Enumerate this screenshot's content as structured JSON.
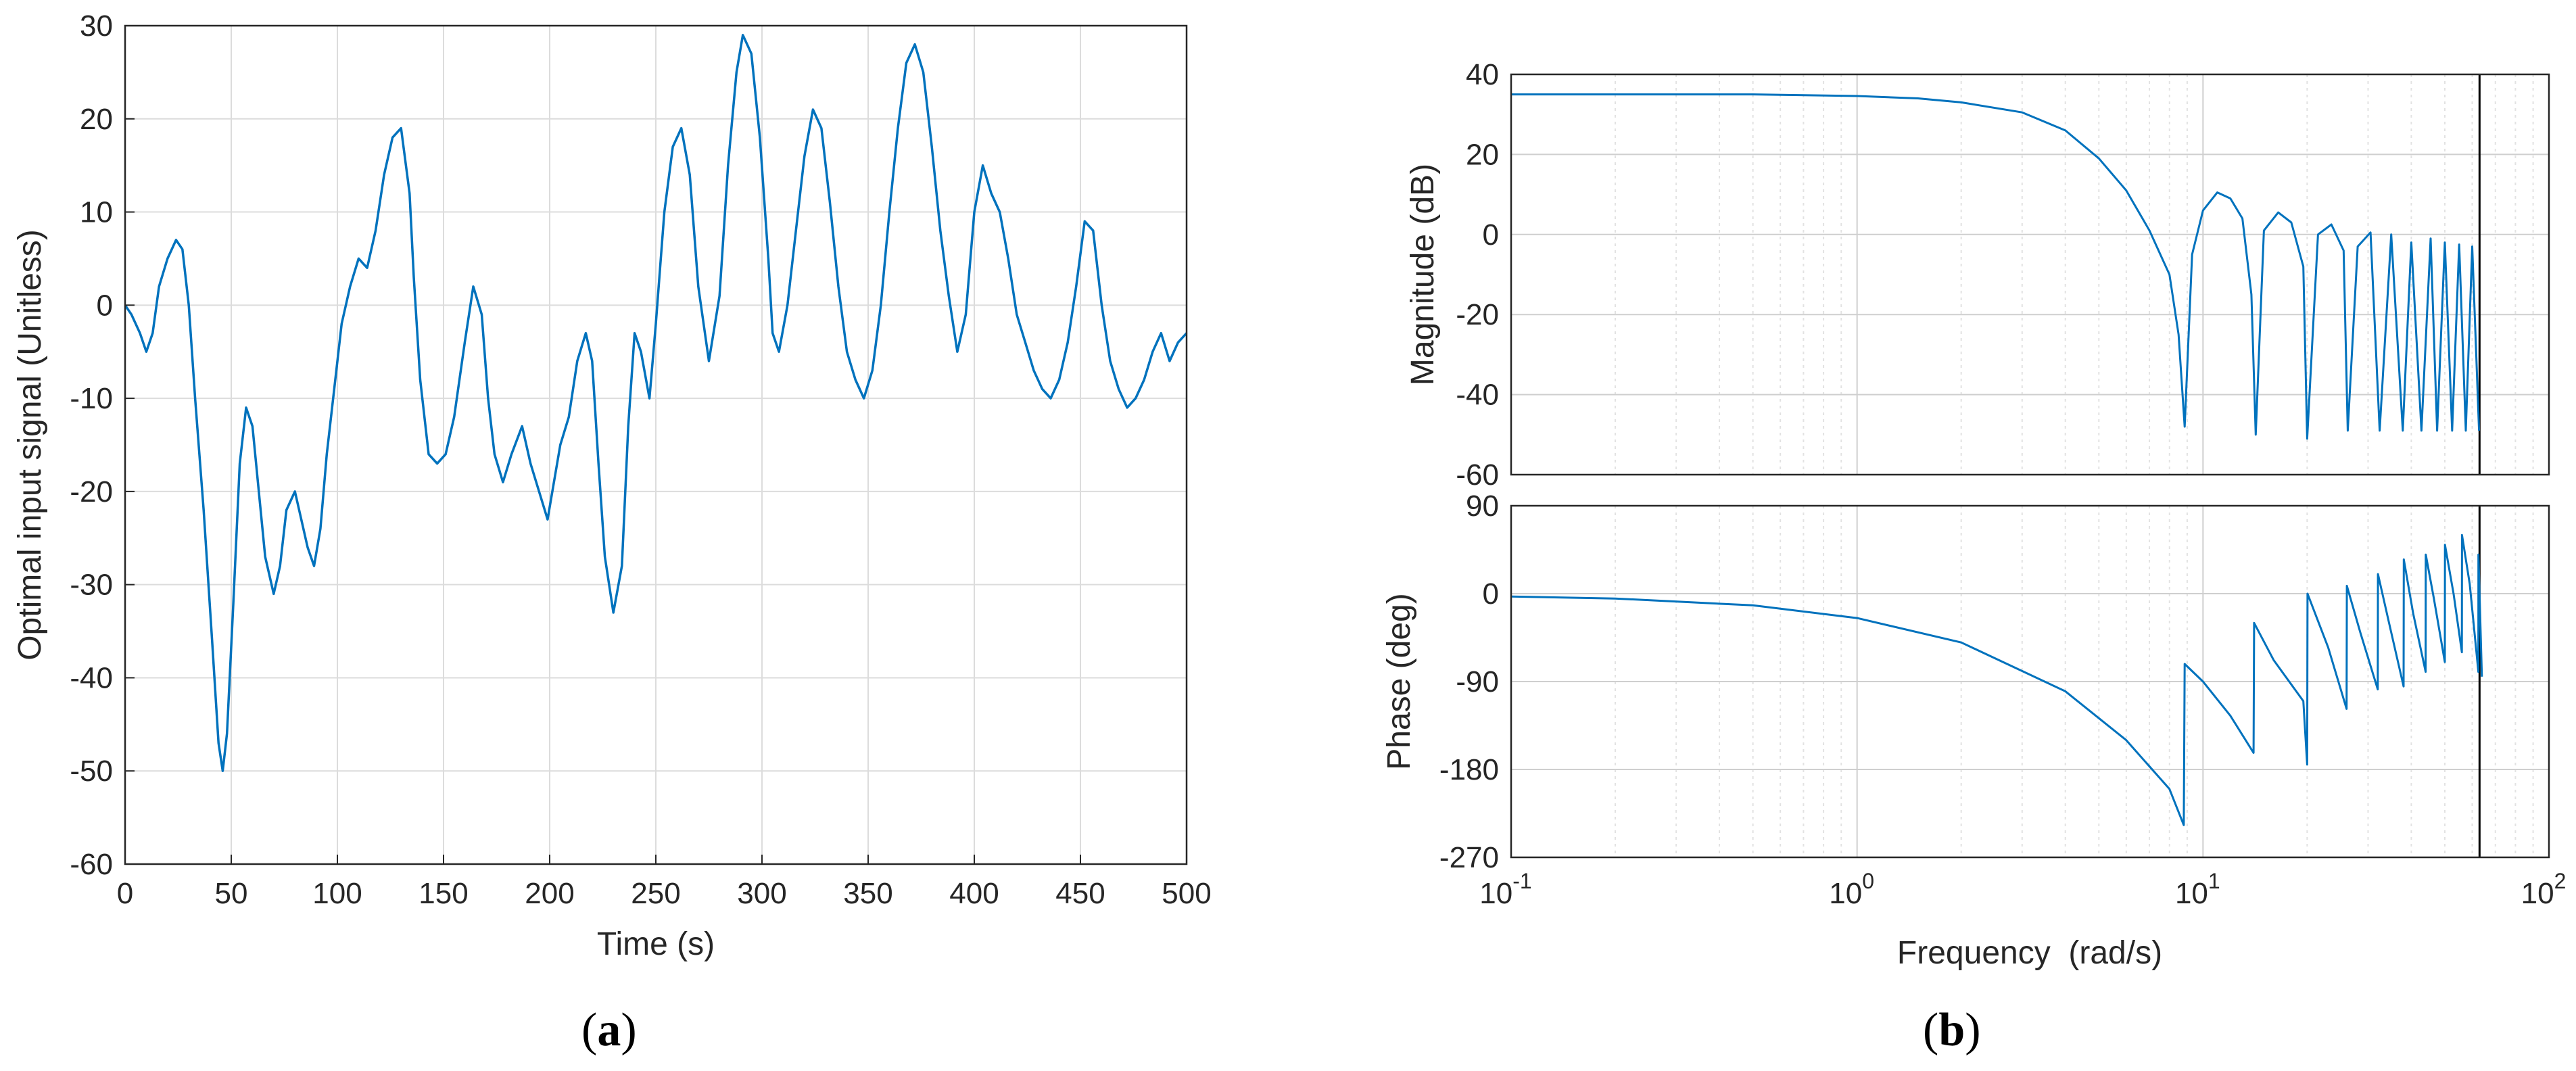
{
  "chart_data": [
    {
      "type": "line",
      "caption": "a",
      "xlabel": "Time (s)",
      "ylabel": "Optimal input signal (Unitless)",
      "xlim": [
        0,
        500
      ],
      "ylim": [
        -60,
        30
      ],
      "xticks": [
        0,
        50,
        100,
        150,
        200,
        250,
        300,
        350,
        400,
        450,
        500
      ],
      "xtick_labels": [
        "0",
        "50",
        "100",
        "150",
        "200",
        "250",
        "300",
        "350",
        "400",
        "450",
        "500"
      ],
      "yticks": [
        30,
        20,
        10,
        0,
        -10,
        -20,
        -30,
        -40,
        -50,
        -60
      ],
      "ytick_labels": [
        "30",
        "20",
        "10",
        "0",
        "-10",
        "-20",
        "-30",
        "-40",
        "-50",
        "-60"
      ],
      "grid": true,
      "color": "#0072BD",
      "series": [
        {
          "x": [
            0,
            3,
            7,
            10,
            13,
            16,
            20,
            24,
            27,
            30,
            33,
            37,
            41,
            44,
            46,
            48,
            51,
            54,
            57,
            60,
            63,
            66,
            70,
            73,
            76,
            80,
            83,
            86,
            89,
            92,
            95,
            99,
            102,
            106,
            110,
            114,
            118,
            122,
            126,
            130,
            134,
            136,
            139,
            143,
            147,
            151,
            155,
            160,
            164,
            168,
            171,
            174,
            178,
            182,
            187,
            191,
            195,
            199,
            202,
            205,
            209,
            213,
            217,
            220,
            223,
            226,
            230,
            234,
            237,
            240,
            243,
            247,
            250,
            254,
            258,
            262,
            266,
            270,
            275,
            280,
            284,
            288,
            291,
            295,
            299,
            303,
            305,
            308,
            312,
            316,
            320,
            324,
            328,
            332,
            336,
            340,
            344,
            348,
            352,
            356,
            360,
            364,
            368,
            372,
            376,
            380,
            384,
            388,
            392,
            396,
            400,
            404,
            408,
            412,
            416,
            420,
            424,
            428,
            432,
            436,
            440,
            444,
            448,
            452,
            456,
            460,
            464,
            468,
            472,
            476,
            480,
            484,
            488,
            492,
            496,
            500
          ],
          "y": [
            0,
            -1,
            -3,
            -5,
            -3,
            2,
            5,
            7,
            6,
            0,
            -10,
            -22,
            -36,
            -47,
            -50,
            -46,
            -32,
            -17,
            -11,
            -13,
            -20,
            -27,
            -31,
            -28,
            -22,
            -20,
            -23,
            -26,
            -28,
            -24,
            -16,
            -8,
            -2,
            2,
            5,
            4,
            8,
            14,
            18,
            19,
            12,
            3,
            -8,
            -16,
            -17,
            -16,
            -12,
            -4,
            2,
            -1,
            -10,
            -16,
            -19,
            -16,
            -13,
            -17,
            -20,
            -23,
            -19,
            -15,
            -12,
            -6,
            -3,
            -6,
            -17,
            -27,
            -33,
            -28,
            -13,
            -3,
            -5,
            -10,
            -2,
            10,
            17,
            19,
            14,
            2,
            -6,
            1,
            15,
            25,
            29,
            27,
            18,
            5,
            -3,
            -5,
            0,
            8,
            16,
            21,
            19,
            11,
            2,
            -5,
            -8,
            -10,
            -7,
            0,
            10,
            19,
            26,
            28,
            25,
            17,
            8,
            1,
            -5,
            -1,
            10,
            15,
            12,
            10,
            5,
            -1,
            -4,
            -7,
            -9,
            -10,
            -8,
            -4,
            2,
            9,
            8,
            0,
            -6,
            -9,
            -11,
            -10,
            -8,
            -5,
            -3,
            -6,
            -4,
            -3
          ]
        }
      ]
    },
    {
      "type": "line",
      "caption": "b",
      "xlabel": "Frequency  (rad/s)",
      "xscale": "log",
      "xlim": [
        0.1,
        100
      ],
      "xtick_labels": [
        {
          "base": "10",
          "exp": "-1"
        },
        {
          "base": "10",
          "exp": "0"
        },
        {
          "base": "10",
          "exp": "1"
        },
        {
          "base": "10",
          "exp": "2"
        }
      ],
      "grid": true,
      "color": "#0072BD",
      "vertical_line_x": 63,
      "subplots": [
        {
          "name": "magnitude",
          "ylabel": "Magnitude (dB)",
          "ylim": [
            -60,
            40
          ],
          "yticks": [
            40,
            20,
            0,
            -20,
            -40,
            -60
          ],
          "ytick_labels": [
            "40",
            "20",
            "0",
            "-20",
            "-40",
            "-60"
          ],
          "series": [
            {
              "x": [
                0.1,
                0.2,
                0.5,
                1.0,
                1.5,
                2.0,
                3.0,
                4.0,
                5.0,
                6.0,
                7.0,
                8.0,
                8.5,
                8.85,
                9.3,
                10.0,
                11.0,
                12.0,
                13.0,
                13.8,
                14.2,
                15.0,
                16.5,
                18.0,
                19.5,
                20.0,
                21.5,
                23.5,
                25.5,
                26.2,
                28.0,
                30.5,
                32.4,
                35.0,
                37.8,
                40.0,
                42.8,
                45.5,
                47.5,
                50.0,
                52.5,
                55.0,
                57.5,
                60.0,
                62.8
              ],
              "y": [
                35,
                35,
                35,
                34.6,
                34,
                33,
                30.5,
                26,
                19,
                11,
                1,
                -10,
                -25,
                -48,
                -5,
                6,
                10.5,
                9,
                4,
                -15,
                -50,
                1,
                5.5,
                3,
                -8,
                -51,
                0,
                2.5,
                -4,
                -49,
                -3,
                0.5,
                -49,
                0,
                -49,
                -2,
                -49,
                -1,
                -49,
                -2,
                -49,
                -2.5,
                -49,
                -3,
                -49
              ]
            }
          ]
        },
        {
          "name": "phase",
          "ylabel": "Phase (deg)",
          "ylim": [
            -270,
            90
          ],
          "yticks": [
            90,
            0,
            -90,
            -180,
            -270
          ],
          "ytick_labels": [
            "90",
            "0",
            "-90",
            "-180",
            "-270"
          ],
          "series": [
            {
              "x": [
                0.1,
                0.2,
                0.5,
                1.0,
                2.0,
                4.0,
                6.0,
                8.0,
                8.8,
                8.85,
                10.0,
                12.0,
                14.0,
                14.05,
                16.0,
                19.5,
                20.0,
                20.05,
                23.0,
                26.0,
                26.05,
                28.5,
                32.0,
                32.05,
                34.5,
                38.0,
                38.05,
                40.5,
                44.0,
                44.05,
                46.5,
                50.0,
                50.05,
                53.0,
                56.0,
                56.05,
                59.0,
                62.5,
                62.55,
                64.0
              ],
              "y": [
                -3,
                -5,
                -12,
                -25,
                -50,
                -100,
                -150,
                -200,
                -237,
                -72,
                -90,
                -125,
                -163,
                -30,
                -68,
                -110,
                -175,
                0,
                -55,
                -118,
                8,
                -40,
                -98,
                20,
                -30,
                -95,
                35,
                -20,
                -80,
                40,
                -5,
                -70,
                50,
                0,
                -60,
                60,
                10,
                -80,
                40,
                -85
              ]
            }
          ]
        }
      ]
    }
  ]
}
